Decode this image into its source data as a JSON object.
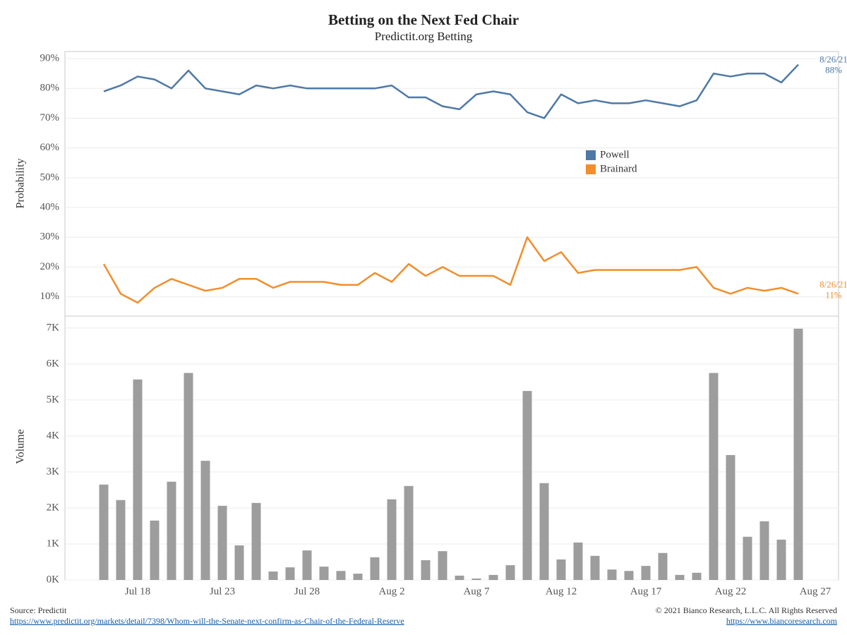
{
  "chart_data": [
    {
      "type": "line",
      "title": "Betting on the Next Fed Chair",
      "subtitle": "Predictit.org Betting",
      "y_label": "Probability",
      "categories": [
        null,
        null,
        "Jul 18",
        null,
        null,
        null,
        null,
        "Jul 23",
        null,
        null,
        null,
        null,
        "Jul 28",
        null,
        null,
        null,
        null,
        "Aug 2",
        null,
        null,
        null,
        null,
        "Aug 7",
        null,
        null,
        null,
        null,
        "Aug 12",
        null,
        null,
        null,
        null,
        "Aug 17",
        null,
        null,
        null,
        null,
        "Aug 22",
        null,
        null,
        null,
        null,
        "Aug 27"
      ],
      "series": [
        {
          "name": "Powell",
          "color": "#4e79a7",
          "end_label": "8/26/21",
          "values": [
            79,
            81,
            84,
            83,
            80,
            86,
            80,
            79,
            78,
            81,
            80,
            81,
            80,
            80,
            80,
            80,
            80,
            81,
            77,
            77,
            74,
            73,
            78,
            79,
            78,
            72,
            70,
            78,
            75,
            76,
            75,
            75,
            76,
            75,
            74,
            76,
            85,
            84,
            85,
            85,
            82,
            88,
            null
          ],
          "value_labels": [
            null,
            null,
            null,
            null,
            null,
            null,
            null,
            null,
            null,
            null,
            null,
            null,
            null,
            null,
            null,
            null,
            null,
            null,
            null,
            null,
            null,
            null,
            null,
            null,
            null,
            null,
            null,
            null,
            null,
            null,
            null,
            null,
            null,
            null,
            null,
            null,
            null,
            null,
            null,
            null,
            null,
            "88%",
            null
          ]
        },
        {
          "name": "Brainard",
          "color": "#f28e2b",
          "end_label": "8/26/21",
          "values": [
            21,
            11,
            8,
            13,
            16,
            14,
            12,
            13,
            16,
            16,
            13,
            15,
            15,
            15,
            14,
            14,
            18,
            15,
            21,
            17,
            20,
            17,
            17,
            17,
            14,
            30,
            22,
            25,
            18,
            19,
            19,
            19,
            19,
            19,
            19,
            20,
            13,
            11,
            13,
            12,
            13,
            11,
            null
          ],
          "value_labels": [
            null,
            null,
            null,
            null,
            null,
            null,
            null,
            null,
            null,
            null,
            null,
            null,
            null,
            null,
            null,
            null,
            null,
            null,
            null,
            null,
            null,
            null,
            null,
            null,
            null,
            null,
            null,
            null,
            null,
            null,
            null,
            null,
            null,
            null,
            null,
            null,
            null,
            null,
            null,
            null,
            null,
            "11%",
            null
          ]
        }
      ],
      "ylim": [
        3.5,
        92.4
      ],
      "yticks": [
        {
          "value": 10,
          "label": "10%"
        },
        {
          "value": 20,
          "label": "20%"
        },
        {
          "value": 30,
          "label": "30%"
        },
        {
          "value": 40,
          "label": "40%"
        },
        {
          "value": 50,
          "label": "50%"
        },
        {
          "value": 60,
          "label": "60%"
        },
        {
          "value": 70,
          "label": "70%"
        },
        {
          "value": 80,
          "label": "80%"
        },
        {
          "value": 90,
          "label": "90%"
        }
      ],
      "grid": true
    },
    {
      "type": "bar",
      "y_label": "Volume",
      "color": "#9d9d9d",
      "categories": [
        null,
        null,
        "Jul 18",
        null,
        null,
        null,
        null,
        "Jul 23",
        null,
        null,
        null,
        null,
        "Jul 28",
        null,
        null,
        null,
        null,
        "Aug 2",
        null,
        null,
        null,
        null,
        "Aug 7",
        null,
        null,
        null,
        null,
        "Aug 12",
        null,
        null,
        null,
        null,
        "Aug 17",
        null,
        null,
        null,
        null,
        "Aug 22",
        null,
        null,
        null,
        null,
        "Aug 27"
      ],
      "values": [
        2650,
        2220,
        5570,
        1650,
        2730,
        5750,
        3310,
        2060,
        960,
        2140,
        235,
        350,
        820,
        370,
        250,
        175,
        630,
        2240,
        2610,
        550,
        800,
        120,
        40,
        140,
        410,
        5250,
        2690,
        570,
        1040,
        670,
        290,
        250,
        390,
        750,
        140,
        200,
        5750,
        3470,
        1200,
        1630,
        1120,
        6980,
        null
      ],
      "ylim": [
        0,
        7330
      ],
      "yticks": [
        {
          "value": 0,
          "label": "0K"
        },
        {
          "value": 1000,
          "label": "1K"
        },
        {
          "value": 2000,
          "label": "2K"
        },
        {
          "value": 3000,
          "label": "3K"
        },
        {
          "value": 4000,
          "label": "4K"
        },
        {
          "value": 5000,
          "label": "5K"
        },
        {
          "value": 6000,
          "label": "6K"
        },
        {
          "value": 7000,
          "label": "7K"
        }
      ],
      "grid": true
    }
  ],
  "footer": {
    "source": "Source: Predictit",
    "source_url": "https://www.predictit.org/markets/detail/7398/Whom-will-the-Senate-next-confirm-as-Chair-of-the-Federal-Reserve",
    "copyright": "© 2021 Bianco Research, L.L.C. All Rights Reserved",
    "site_url": "https://www.biancoresearch.com"
  }
}
